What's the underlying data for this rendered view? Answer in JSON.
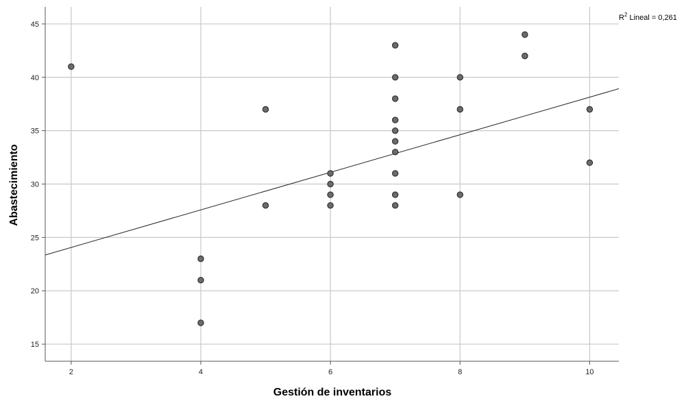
{
  "chart_data": {
    "type": "scatter",
    "xlabel": "Gestión de inventarios",
    "ylabel": "Abastecimiento",
    "xlim": [
      1.6,
      10.45
    ],
    "ylim": [
      13.4,
      46.6
    ],
    "x_ticks": [
      2,
      4,
      6,
      8,
      10
    ],
    "y_ticks": [
      15,
      20,
      25,
      30,
      35,
      40,
      45
    ],
    "grid": true,
    "annotation": {
      "prefix": "R",
      "sup": "2",
      "text": " Lineal = 0,261"
    },
    "fit_line": {
      "intercept": 20.54,
      "slope": 1.76
    },
    "series": [
      {
        "marker_color": "#6b6b6b",
        "points": [
          [
            2,
            41
          ],
          [
            4,
            23
          ],
          [
            4,
            21
          ],
          [
            4,
            17
          ],
          [
            5,
            37
          ],
          [
            5,
            28
          ],
          [
            6,
            31
          ],
          [
            6,
            30
          ],
          [
            6,
            29
          ],
          [
            6,
            28
          ],
          [
            7,
            43
          ],
          [
            7,
            40
          ],
          [
            7,
            38
          ],
          [
            7,
            36
          ],
          [
            7,
            35
          ],
          [
            7,
            34
          ],
          [
            7,
            33
          ],
          [
            7,
            31
          ],
          [
            7,
            29
          ],
          [
            7,
            28
          ],
          [
            8,
            40
          ],
          [
            8,
            37
          ],
          [
            8,
            29
          ],
          [
            9,
            44
          ],
          [
            9,
            42
          ],
          [
            10,
            37
          ],
          [
            10,
            32
          ]
        ]
      }
    ]
  }
}
